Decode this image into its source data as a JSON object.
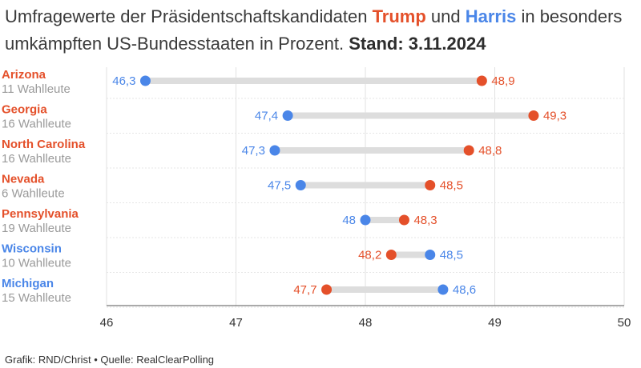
{
  "headline": {
    "part1": "Umfragewerte der Präsidentschaftskandidaten ",
    "trump": "Trump",
    "part2": " und ",
    "harris": "Harris",
    "part3": " in besonders umkämpften US-Bundesstaaten in Prozent. ",
    "stand": "Stand: 3.11.2024"
  },
  "footer": {
    "credit": "Grafik: RND/Christ",
    "separator": " • ",
    "source": "Quelle: RealClearPolling"
  },
  "colors": {
    "trump": "#e4502a",
    "harris": "#4a86e8",
    "connector": "#dddddd",
    "grid": "#e2e2e2",
    "subtitle": "#9a9a9a"
  },
  "chart_data": {
    "type": "dot",
    "xlim": [
      46,
      50
    ],
    "ticks": [
      46,
      47,
      48,
      49,
      50
    ],
    "grid": true,
    "series": [
      {
        "name": "Trump",
        "key": "trump"
      },
      {
        "name": "Harris",
        "key": "harris"
      }
    ],
    "states": [
      {
        "name": "Arizona",
        "electors": "11 Wahlleute",
        "leader": "trump",
        "trump": 48.9,
        "harris": 46.3,
        "trump_label": "48,9",
        "harris_label": "46,3"
      },
      {
        "name": "Georgia",
        "electors": "16 Wahlleute",
        "leader": "trump",
        "trump": 49.3,
        "harris": 47.4,
        "trump_label": "49,3",
        "harris_label": "47,4"
      },
      {
        "name": "North Carolina",
        "electors": "16 Wahlleute",
        "leader": "trump",
        "trump": 48.8,
        "harris": 47.3,
        "trump_label": "48,8",
        "harris_label": "47,3"
      },
      {
        "name": "Nevada",
        "electors": "6 Wahlleute",
        "leader": "trump",
        "trump": 48.5,
        "harris": 47.5,
        "trump_label": "48,5",
        "harris_label": "47,5"
      },
      {
        "name": "Pennsylvania",
        "electors": "19 Wahlleute",
        "leader": "trump",
        "trump": 48.3,
        "harris": 48.0,
        "trump_label": "48,3",
        "harris_label": "48"
      },
      {
        "name": "Wisconsin",
        "electors": "10 Wahlleute",
        "leader": "harris",
        "trump": 48.2,
        "harris": 48.5,
        "trump_label": "48,2",
        "harris_label": "48,5"
      },
      {
        "name": "Michigan",
        "electors": "15 Wahlleute",
        "leader": "harris",
        "trump": 47.7,
        "harris": 48.6,
        "trump_label": "47,7",
        "harris_label": "48,6"
      }
    ]
  }
}
